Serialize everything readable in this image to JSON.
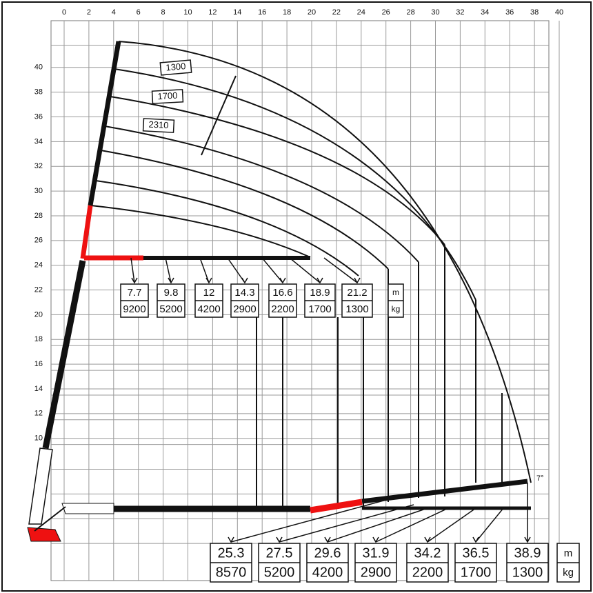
{
  "x_axis": {
    "ticks": [
      0,
      2,
      4,
      6,
      8,
      10,
      12,
      14,
      16,
      18,
      20,
      22,
      24,
      26,
      28,
      30,
      32,
      34,
      36,
      38,
      40
    ]
  },
  "y_axis": {
    "ticks": [
      10,
      12,
      14,
      16,
      18,
      20,
      22,
      24,
      26,
      28,
      30,
      32,
      34,
      36,
      38,
      40
    ]
  },
  "arc_labels": [
    "1300",
    "1700",
    "2310"
  ],
  "angle_label": "7°",
  "upper_boxes": [
    {
      "reach": "7.7",
      "load": "9200"
    },
    {
      "reach": "9.8",
      "load": "5200"
    },
    {
      "reach": "12",
      "load": "4200"
    },
    {
      "reach": "14.3",
      "load": "2900"
    },
    {
      "reach": "16.6",
      "load": "2200"
    },
    {
      "reach": "18.9",
      "load": "1700"
    },
    {
      "reach": "21.2",
      "load": "1300"
    },
    {
      "reach": "m",
      "load": "kg"
    }
  ],
  "lower_boxes": [
    {
      "reach": "25.3",
      "load": "8570"
    },
    {
      "reach": "27.5",
      "load": "5200"
    },
    {
      "reach": "29.6",
      "load": "4200"
    },
    {
      "reach": "31.9",
      "load": "2900"
    },
    {
      "reach": "34.2",
      "load": "2200"
    },
    {
      "reach": "36.5",
      "load": "1700"
    },
    {
      "reach": "38.9",
      "load": "1300"
    },
    {
      "reach": "m",
      "load": "kg"
    }
  ]
}
